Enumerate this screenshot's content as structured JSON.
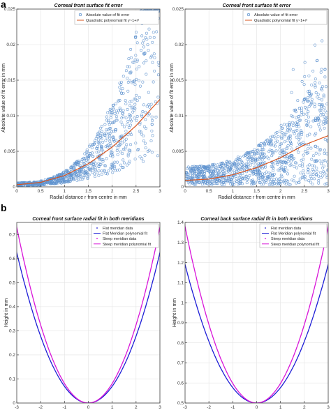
{
  "panel_labels": [
    "a",
    "b"
  ],
  "colors": {
    "scatter": "#3a7ac4",
    "fit": "#d9541e",
    "flat": "#1f1fd6",
    "steep": "#d916d9",
    "grid": "#e3e3e3",
    "axis": "#444444"
  },
  "chart_data": [
    {
      "type": "scatter",
      "title": "Corneal front surface fit error",
      "xlabel": "Radial distance r from centre in mm",
      "ylabel": "Absolute value of fit error in mm",
      "xlim": [
        0,
        3
      ],
      "ylim": [
        0,
        0.025
      ],
      "xticks": [
        "0",
        "0.5",
        "1",
        "1.5",
        "2",
        "2.5",
        "3"
      ],
      "yticks": [
        "0",
        "0.005",
        "0.01",
        "0.015",
        "0.02",
        "0.025"
      ],
      "grid": true,
      "legend_position": "top-right",
      "series": [
        {
          "name": "Absolute value of fit error",
          "kind": "points",
          "marker": "circle"
        },
        {
          "name": "Quadratic polynomial fit y~1+r²",
          "kind": "line",
          "x": [
            0,
            0.5,
            1,
            1.5,
            2,
            2.5,
            3
          ],
          "y": [
            0.0003,
            0.00063,
            0.0016,
            0.00325,
            0.0056,
            0.0086,
            0.0123
          ]
        }
      ]
    },
    {
      "type": "scatter",
      "title": "Corneal front surface fit error",
      "xlabel": "Radial distance r from centre in mm",
      "ylabel": "Absolute value of fit error in mm",
      "xlim": [
        0,
        3
      ],
      "ylim": [
        0,
        0.025
      ],
      "xticks": [
        "0",
        "0.5",
        "1",
        "1.5",
        "2",
        "2.5",
        "3"
      ],
      "yticks": [
        "0",
        "0.005",
        "0.01",
        "0.015",
        "0.02",
        "0.025"
      ],
      "grid": true,
      "legend_position": "top-right",
      "series": [
        {
          "name": "Absolute value of fit error",
          "kind": "points",
          "marker": "circle"
        },
        {
          "name": "Quadratic polynomial fit y~1+r²",
          "kind": "line",
          "x": [
            0,
            0.5,
            1,
            1.5,
            2,
            2.5,
            3
          ],
          "y": [
            0.0009,
            0.0011,
            0.0017,
            0.0027,
            0.0041,
            0.0059,
            0.0072
          ]
        }
      ]
    },
    {
      "type": "line",
      "title": "Corneal front surface radial fit in both meridians",
      "xlabel": "Radial distance r from centre in mm",
      "ylabel": "Height in mm",
      "xlim": [
        -3,
        3
      ],
      "ylim": [
        0,
        0.75
      ],
      "xticks": [
        "-3",
        "-2",
        "-1",
        "0",
        "1",
        "2",
        "3"
      ],
      "yticks": [
        "0",
        "0.1",
        "0.2",
        "0.3",
        "0.4",
        "0.5",
        "0.6",
        "0.7"
      ],
      "grid": true,
      "legend_position": "top-right",
      "series": [
        {
          "name": "Flat meridian data",
          "kind": "points",
          "coef": 0.0694,
          "offset": 0
        },
        {
          "name": "Flat Meridian polynomial fit",
          "kind": "line",
          "coef": 0.0694,
          "offset": 0
        },
        {
          "name": "Steep meridian data",
          "kind": "points",
          "coef": 0.0811,
          "offset": 0
        },
        {
          "name": "Steep meridian polynomial fit",
          "kind": "line",
          "coef": 0.0811,
          "offset": 0
        }
      ]
    },
    {
      "type": "line",
      "title": "Corneal back surface radial fit in both meridians",
      "xlabel": "Radial distance r from centre in mm",
      "ylabel": "Height in mm",
      "xlim": [
        -3,
        3
      ],
      "ylim": [
        0.5,
        1.4
      ],
      "xticks": [
        "-3",
        "-2",
        "-1",
        "0",
        "1",
        "2",
        "3"
      ],
      "yticks": [
        "0.5",
        "0.6",
        "0.7",
        "0.8",
        "0.9",
        "1",
        "1.1",
        "1.2",
        "1.3",
        "1.4"
      ],
      "grid": true,
      "legend_position": "top-right",
      "series": [
        {
          "name": "Flat meridian data",
          "kind": "points",
          "coef": 0.0767,
          "offset": 0.5
        },
        {
          "name": "Flat Meridian polynomial fit",
          "kind": "line",
          "coef": 0.0767,
          "offset": 0.5
        },
        {
          "name": "Steep meridian data",
          "kind": "points",
          "coef": 0.0978,
          "offset": 0.5
        },
        {
          "name": "Steep meridian polynomial fit",
          "kind": "line",
          "coef": 0.0978,
          "offset": 0.5
        }
      ]
    }
  ]
}
